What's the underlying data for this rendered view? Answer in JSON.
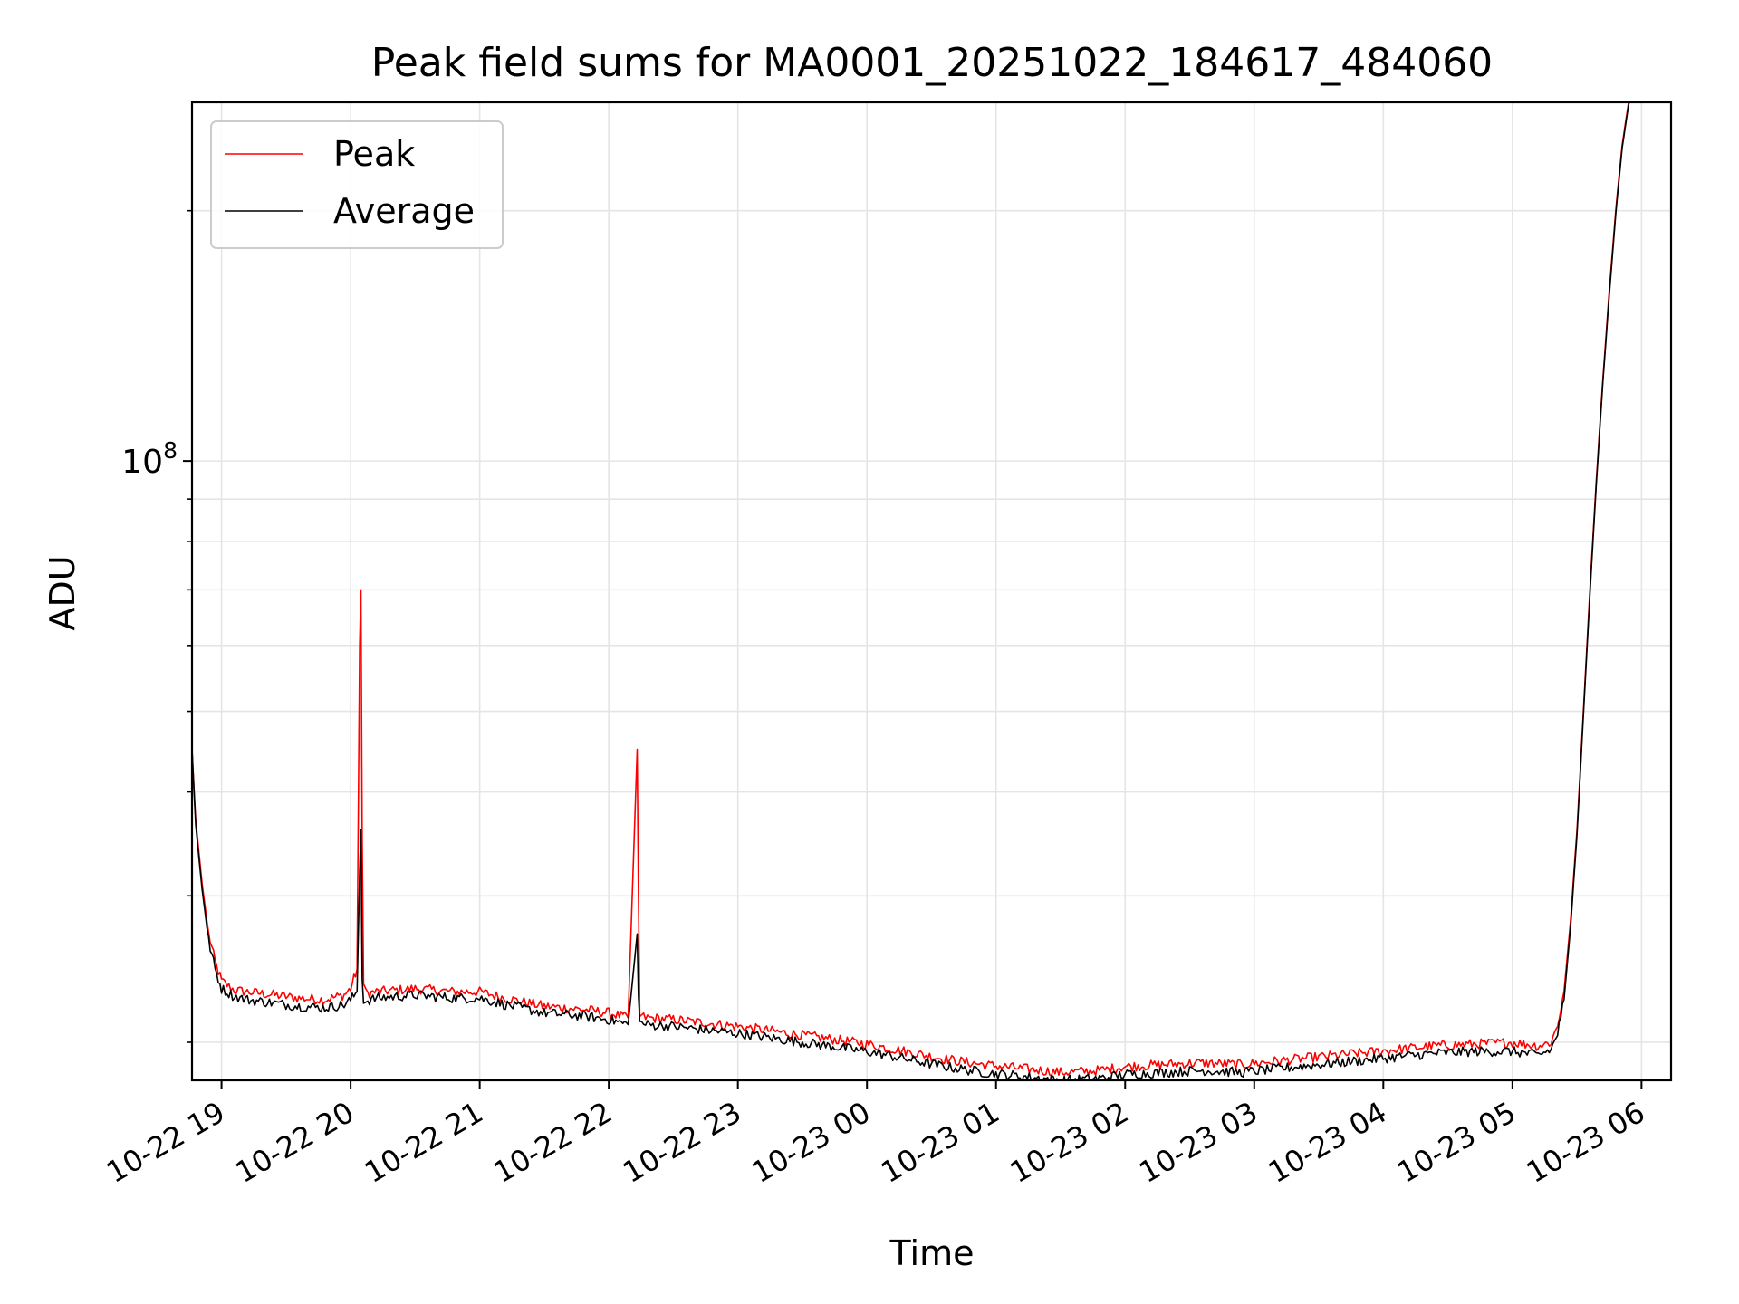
{
  "chart_data": {
    "type": "line",
    "title": "Peak field sums for MA0001_20251022_184617_484060",
    "xlabel": "Time",
    "ylabel": "ADU",
    "yscale": "log",
    "xlim_hours": [
      18.7714,
      30.229
    ],
    "ylim": [
      18000000,
      270000000
    ],
    "grid": true,
    "legend": {
      "position": "top-left",
      "entries": [
        "Peak",
        "Average"
      ]
    },
    "x_ticks": [
      {
        "label": "10-22 19",
        "hour": 19
      },
      {
        "label": "10-22 20",
        "hour": 20
      },
      {
        "label": "10-22 21",
        "hour": 21
      },
      {
        "label": "10-22 22",
        "hour": 22
      },
      {
        "label": "10-22 23",
        "hour": 23
      },
      {
        "label": "10-23 00",
        "hour": 24
      },
      {
        "label": "10-23 01",
        "hour": 25
      },
      {
        "label": "10-23 02",
        "hour": 26
      },
      {
        "label": "10-23 03",
        "hour": 27
      },
      {
        "label": "10-23 04",
        "hour": 28
      },
      {
        "label": "10-23 05",
        "hour": 29
      },
      {
        "label": "10-23 06",
        "hour": 30
      }
    ],
    "y_major_ticks": [
      {
        "base": "10",
        "exp": "8",
        "value": 100000000
      }
    ],
    "y_minor_ticks": [
      20000000,
      30000000,
      40000000,
      50000000,
      60000000,
      70000000,
      80000000,
      90000000,
      200000000
    ],
    "series": [
      {
        "name": "Peak",
        "color": "#ff0000",
        "hours": [
          18.7714,
          18.8,
          18.85,
          18.9,
          18.95,
          19.0,
          19.1,
          19.2,
          19.4,
          19.6,
          19.8,
          19.95,
          20.0,
          20.05,
          20.07,
          20.08,
          20.09,
          20.1,
          20.12,
          20.2,
          20.5,
          20.8,
          21.0,
          21.2,
          21.5,
          21.8,
          22.0,
          22.15,
          22.22,
          22.23,
          22.24,
          22.3,
          22.5,
          23.0,
          23.5,
          24.0,
          24.3,
          24.6,
          24.9,
          25.2,
          25.5,
          25.8,
          26.0,
          26.3,
          26.6,
          26.9,
          27.2,
          27.5,
          27.8,
          28.1,
          28.4,
          28.7,
          29.0,
          29.2,
          29.3,
          29.35,
          29.4,
          29.45,
          29.5,
          29.55,
          29.6,
          29.65,
          29.7,
          29.75,
          29.8,
          29.85,
          29.9,
          29.95,
          30.0,
          30.05
        ],
        "values": [
          45000000,
          37000000,
          31000000,
          27000000,
          25000000,
          23700000,
          23100000,
          23000000,
          22800000,
          22600000,
          22500000,
          22800000,
          23200000,
          24500000,
          60000000,
          70000000,
          35000000,
          23500000,
          22900000,
          23000000,
          23200000,
          23000000,
          23000000,
          22600000,
          22100000,
          21900000,
          21700000,
          21400000,
          45000000,
          30000000,
          21500000,
          21400000,
          21300000,
          20900000,
          20400000,
          19900000,
          19500000,
          19100000,
          18800000,
          18600000,
          18400000,
          18500000,
          18700000,
          18800000,
          18900000,
          18800000,
          19000000,
          19200000,
          19400000,
          19600000,
          19800000,
          19900000,
          20000000,
          19800000,
          20000000,
          21000000,
          23000000,
          28000000,
          36000000,
          50000000,
          70000000,
          95000000,
          125000000,
          160000000,
          200000000,
          240000000,
          270000000,
          290000000,
          300000000,
          300000000
        ]
      },
      {
        "name": "Average",
        "color": "#000000",
        "hours": [
          18.7714,
          18.8,
          18.85,
          18.9,
          18.95,
          19.0,
          19.1,
          19.2,
          19.4,
          19.6,
          19.8,
          19.95,
          20.0,
          20.05,
          20.07,
          20.08,
          20.09,
          20.1,
          20.12,
          20.2,
          20.5,
          20.8,
          21.0,
          21.2,
          21.5,
          21.8,
          22.0,
          22.15,
          22.22,
          22.23,
          22.24,
          22.3,
          22.5,
          23.0,
          23.5,
          24.0,
          24.3,
          24.6,
          24.9,
          25.2,
          25.5,
          25.8,
          26.0,
          26.3,
          26.6,
          26.9,
          27.2,
          27.5,
          27.8,
          28.1,
          28.4,
          28.7,
          29.0,
          29.2,
          29.3,
          29.35,
          29.4,
          29.45,
          29.5,
          29.55,
          29.6,
          29.65,
          29.7,
          29.75,
          29.8,
          29.85,
          29.9,
          29.95,
          30.0,
          30.05
        ],
        "values": [
          45000000,
          36500000,
          30500000,
          26500000,
          24500000,
          23200000,
          22700000,
          22500000,
          22300000,
          22100000,
          22000000,
          22200000,
          22500000,
          23000000,
          32000000,
          36000000,
          24000000,
          22500000,
          22400000,
          22600000,
          22800000,
          22600000,
          22600000,
          22200000,
          21700000,
          21500000,
          21300000,
          21000000,
          27000000,
          23000000,
          21100000,
          21000000,
          20900000,
          20500000,
          20000000,
          19500000,
          19100000,
          18700000,
          18400000,
          18200000,
          18000000,
          18100000,
          18300000,
          18400000,
          18500000,
          18400000,
          18600000,
          18800000,
          19000000,
          19200000,
          19400000,
          19500000,
          19500000,
          19300000,
          19600000,
          20500000,
          22500000,
          27500000,
          35500000,
          49500000,
          69000000,
          94000000,
          124000000,
          158000000,
          198000000,
          238000000,
          268000000,
          288000000,
          298000000,
          300000000
        ]
      }
    ]
  }
}
